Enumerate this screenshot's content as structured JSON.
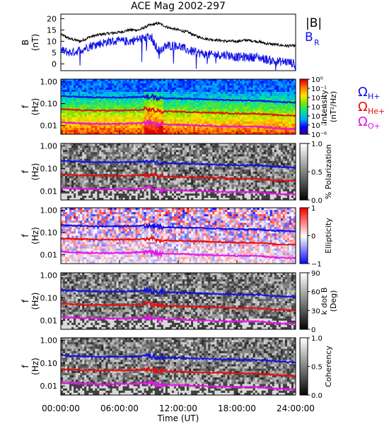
{
  "title": "ACE Mag 2002-297",
  "xlabel": "Time (UT)",
  "xticks": [
    "00:00:00",
    "06:00:00",
    "12:00:00",
    "18:00:00",
    "24:00:00"
  ],
  "colors": {
    "black": "#000000",
    "blue": "#1010e6",
    "red": "#e60f0f",
    "magenta": "#e614e6"
  },
  "chart_data": [
    {
      "type": "line",
      "ylabel": "B",
      "yunit": "(nT)",
      "yticks": [
        "0",
        "5",
        "10",
        "15",
        "20"
      ],
      "ylim": [
        -3,
        22
      ],
      "x_range_hours": [
        0,
        24
      ],
      "legend": [
        {
          "name": "|B|",
          "color": "#000000"
        },
        {
          "name": "B",
          "sub": "R",
          "color": "#1010e6"
        }
      ],
      "series": [
        {
          "name": "|B|",
          "x": [
            0,
            1,
            2,
            3,
            4,
            5,
            6,
            7,
            8,
            9,
            10,
            11,
            12,
            13,
            14,
            15,
            16,
            17,
            18,
            19,
            20,
            21,
            22,
            23,
            24
          ],
          "values": [
            13,
            11,
            10,
            12,
            13,
            13.5,
            14,
            15,
            15,
            17,
            18,
            16,
            15,
            14,
            12,
            11,
            10.5,
            10,
            10,
            10.5,
            10,
            9,
            8.5,
            8,
            8
          ]
        },
        {
          "name": "B_R",
          "x": [
            0,
            1,
            2,
            3,
            4,
            5,
            6,
            7,
            8,
            9,
            10,
            11,
            12,
            13,
            14,
            15,
            16,
            17,
            18,
            19,
            20,
            21,
            22,
            23,
            24
          ],
          "values": [
            6,
            5,
            6,
            8,
            9,
            10,
            10,
            10,
            11,
            12,
            6,
            8,
            8,
            6,
            5,
            4,
            4,
            4,
            3,
            3,
            3,
            2,
            1,
            1,
            0
          ]
        }
      ]
    },
    {
      "type": "heatmap",
      "ylabel": "f",
      "yunit": "(Hz)",
      "yticks": [
        "0.01",
        "0.10",
        "1.00"
      ],
      "colorbar_label": "Intensity",
      "colorbar_unit": "(nT²/Hz)",
      "colorbar_ticks": [
        "10⁰",
        "10⁻¹",
        "10⁻²",
        "10⁻³",
        "10⁻⁴",
        "10⁻⁵",
        "10⁻⁶"
      ],
      "colormap": "rainbow",
      "legend": [
        {
          "name": "Ω",
          "sub": "H+",
          "color": "#1010e6"
        },
        {
          "name": "Ω",
          "sub": "He+",
          "color": "#e60f0f"
        },
        {
          "name": "Ω",
          "sub": "O+",
          "color": "#e614e6"
        }
      ]
    },
    {
      "type": "heatmap",
      "ylabel": "f",
      "yunit": "(Hz)",
      "yticks": [
        "0.01",
        "0.10",
        "1.00"
      ],
      "colorbar_label": "% Polarization",
      "colorbar_ticks": [
        "0.0",
        "0.5",
        "1.0"
      ],
      "colormap": "gray"
    },
    {
      "type": "heatmap",
      "ylabel": "f",
      "yunit": "(Hz)",
      "yticks": [
        "0.01",
        "0.10",
        "1.00"
      ],
      "colorbar_label": "Ellipticity",
      "colorbar_ticks": [
        "−1",
        "0",
        "1"
      ],
      "colormap": "blue-white-red"
    },
    {
      "type": "heatmap",
      "ylabel": "f",
      "yunit": "(Hz)",
      "yticks": [
        "0.01",
        "0.10",
        "1.00"
      ],
      "colorbar_label": "k dot B",
      "colorbar_unit": "(Deg)",
      "colorbar_ticks": [
        "0",
        "30",
        "60",
        "90"
      ],
      "colormap": "gray"
    },
    {
      "type": "heatmap",
      "ylabel": "f",
      "yunit": "(Hz)",
      "yticks": [
        "0.01",
        "0.10",
        "1.00"
      ],
      "colorbar_label": "Coherency",
      "colorbar_ticks": [
        "0.0",
        "0.5",
        "1.0"
      ],
      "colormap": "gray"
    }
  ],
  "gyro_lines": {
    "x_hours": [
      0,
      2,
      4,
      6,
      8,
      9,
      10,
      12,
      14,
      16,
      18,
      20,
      22,
      24
    ],
    "H+": [
      0.22,
      0.2,
      0.19,
      0.19,
      0.2,
      0.22,
      0.18,
      0.17,
      0.16,
      0.15,
      0.14,
      0.14,
      0.12,
      0.11
    ],
    "He+": [
      0.055,
      0.05,
      0.048,
      0.048,
      0.05,
      0.055,
      0.045,
      0.043,
      0.04,
      0.038,
      0.035,
      0.035,
      0.03,
      0.028
    ],
    "O+": [
      0.014,
      0.0125,
      0.012,
      0.012,
      0.0125,
      0.014,
      0.011,
      0.011,
      0.01,
      0.0095,
      0.009,
      0.009,
      0.0075,
      0.007
    ]
  }
}
